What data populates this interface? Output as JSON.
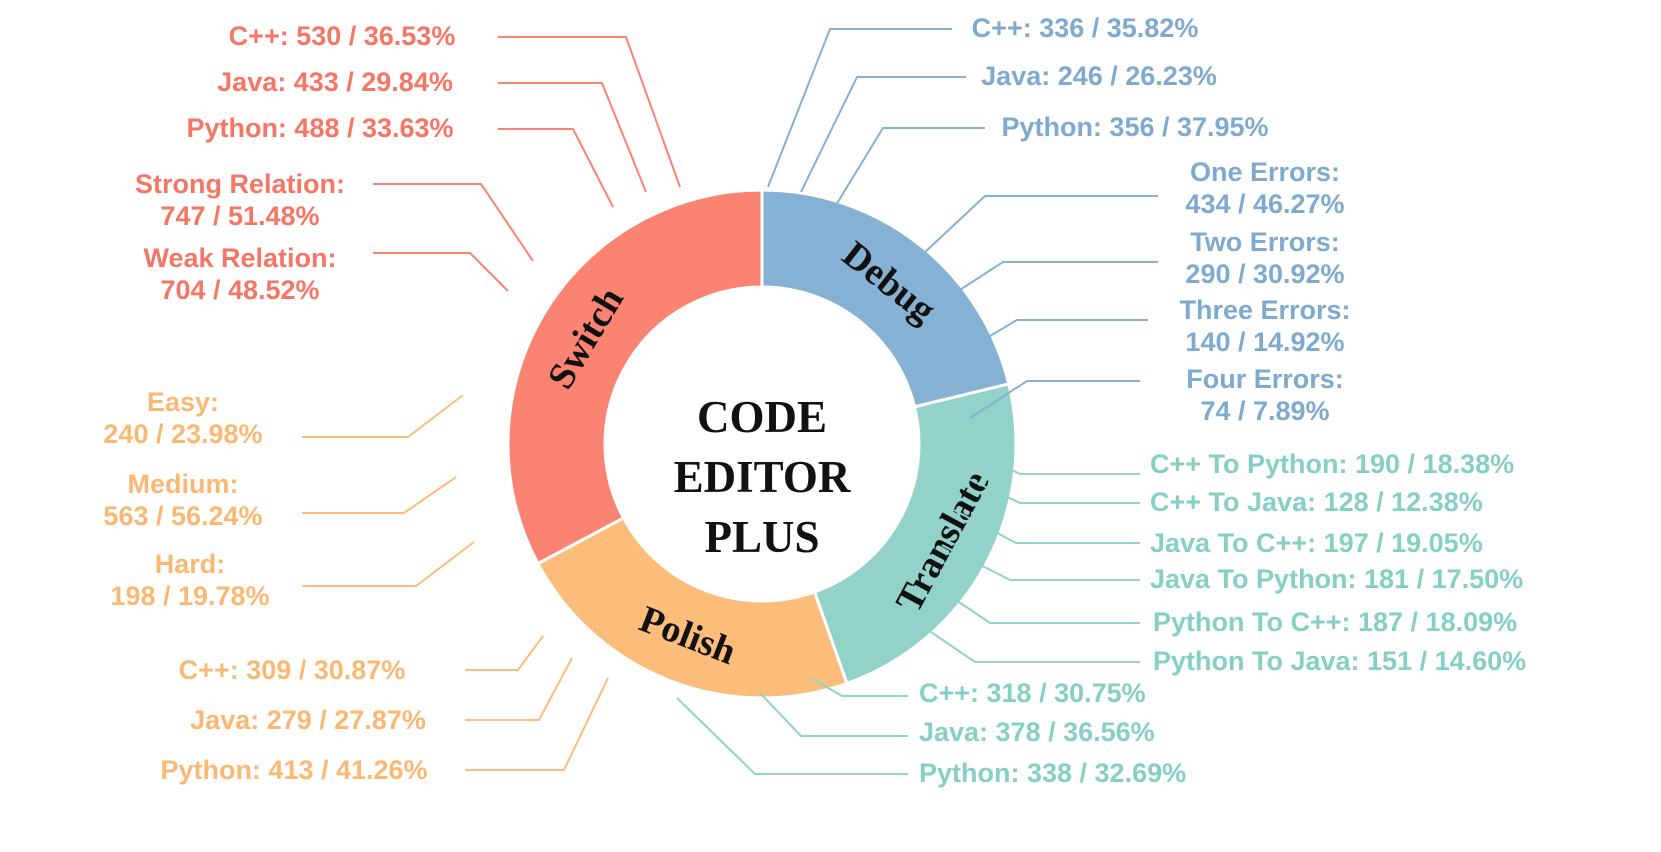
{
  "chart_data": {
    "type": "pie",
    "title": "CODE EDITOR PLUS",
    "title_lines": [
      "CODE",
      "EDITOR",
      "PLUS"
    ],
    "colors": {
      "Debug": "#85b1d4",
      "Translate": "#92d2c9",
      "Polish": "#fcbd7b",
      "Switch": "#fa8372",
      "Debug_text": "#7eaad0",
      "Translate_text": "#86cfc5",
      "Polish_text": "#fbb873",
      "Switch_text": "#f57664"
    },
    "slices": [
      {
        "name": "Debug",
        "value": 938
      },
      {
        "name": "Translate",
        "value": 1034
      },
      {
        "name": "Polish",
        "value": 1001
      },
      {
        "name": "Switch",
        "value": 1451
      }
    ],
    "annotations": {
      "Debug": [
        {
          "lines": [
            "C++: 336 / 35.82%"
          ]
        },
        {
          "lines": [
            "Java: 246 / 26.23%"
          ]
        },
        {
          "lines": [
            "Python: 356 / 37.95%"
          ]
        },
        {
          "lines": [
            "One Errors:",
            "434 / 46.27%"
          ]
        },
        {
          "lines": [
            "Two Errors:",
            "290 / 30.92%"
          ]
        },
        {
          "lines": [
            "Three Errors:",
            "140 / 14.92%"
          ]
        },
        {
          "lines": [
            "Four Errors:",
            "74 / 7.89%"
          ]
        }
      ],
      "Translate": [
        {
          "lines": [
            "C++ To Python: 190 / 18.38%"
          ]
        },
        {
          "lines": [
            "C++ To Java: 128 / 12.38%"
          ]
        },
        {
          "lines": [
            "Java To C++: 197 / 19.05%"
          ]
        },
        {
          "lines": [
            "Java To Python: 181 / 17.50%"
          ]
        },
        {
          "lines": [
            "Python To C++: 187 / 18.09%"
          ]
        },
        {
          "lines": [
            "Python To Java: 151 / 14.60%"
          ]
        },
        {
          "lines": [
            "C++: 318 / 30.75%"
          ]
        },
        {
          "lines": [
            "Java: 378 / 36.56%"
          ]
        },
        {
          "lines": [
            "Python: 338 / 32.69%"
          ]
        }
      ],
      "Polish": [
        {
          "lines": [
            "Easy:",
            "240 / 23.98%"
          ]
        },
        {
          "lines": [
            "Medium:",
            "563 / 56.24%"
          ]
        },
        {
          "lines": [
            "Hard:",
            "198 / 19.78%"
          ]
        },
        {
          "lines": [
            "C++: 309 / 30.87%"
          ]
        },
        {
          "lines": [
            "Java: 279 / 27.87%"
          ]
        },
        {
          "lines": [
            "Python: 413 / 41.26%"
          ]
        }
      ],
      "Switch": [
        {
          "lines": [
            "C++: 530 / 36.53%"
          ]
        },
        {
          "lines": [
            "Java: 433 / 29.84%"
          ]
        },
        {
          "lines": [
            "Python: 488 / 33.63%"
          ]
        },
        {
          "lines": [
            "Strong Relation:",
            "747 / 51.48%"
          ]
        },
        {
          "lines": [
            "Weak Relation:",
            "704 / 48.52%"
          ]
        }
      ]
    }
  }
}
